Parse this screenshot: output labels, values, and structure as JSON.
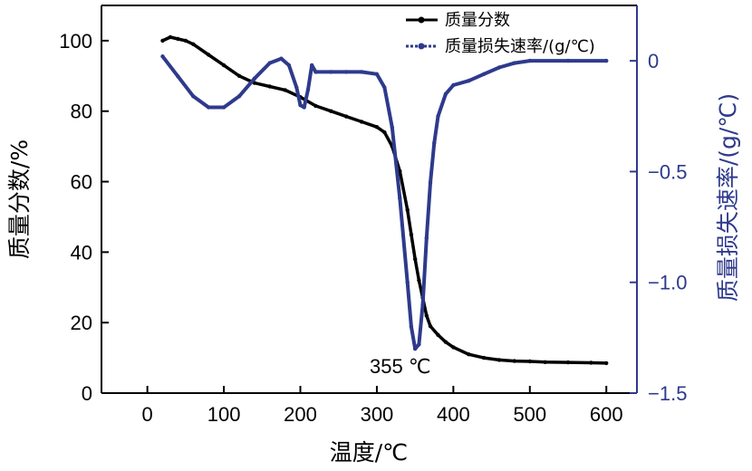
{
  "chart_data": {
    "type": "line",
    "xlabel": "温度/℃",
    "ylabel_left": "质量分数/%",
    "ylabel_right": "质量损失速率/(g/℃)",
    "xlim": [
      -60,
      640
    ],
    "ylim_left": [
      0,
      110
    ],
    "ylim_right": [
      -1.5,
      0.25
    ],
    "x_ticks": [
      0,
      100,
      200,
      300,
      400,
      500,
      600
    ],
    "y_left_ticks": [
      0,
      20,
      40,
      60,
      80,
      100
    ],
    "y_right_ticks": [
      -1.5,
      -1.0,
      -0.5,
      0
    ],
    "y_right_tick_labels": [
      "−1.5",
      "−1.0",
      "−0.5",
      "0"
    ],
    "annotation": {
      "text": "355 ℃",
      "x": 355,
      "y": -1.3
    },
    "colors": {
      "mass": "#000000",
      "rate": "#2e3a8c",
      "right_axis": "#2e3a8c"
    },
    "series": [
      {
        "name": "质量分数",
        "axis": "left",
        "color": "#000000",
        "x": [
          20,
          30,
          40,
          50,
          60,
          80,
          100,
          120,
          140,
          160,
          180,
          200,
          220,
          240,
          260,
          280,
          300,
          310,
          320,
          330,
          340,
          345,
          350,
          355,
          360,
          365,
          370,
          380,
          390,
          400,
          420,
          440,
          460,
          480,
          500,
          520,
          550,
          580,
          600
        ],
        "values": [
          100,
          101,
          100.5,
          100,
          99,
          96,
          93,
          90,
          88,
          87,
          86,
          84,
          81.5,
          80,
          78.5,
          77,
          75.5,
          74,
          70,
          63,
          52,
          45,
          38,
          32,
          27,
          22,
          19,
          16.5,
          14.5,
          13,
          11,
          10,
          9.4,
          9.1,
          9,
          8.8,
          8.7,
          8.6,
          8.5
        ]
      },
      {
        "name": "质量损失速率/(g/℃)",
        "axis": "right",
        "color": "#2e3a8c",
        "x": [
          20,
          40,
          60,
          80,
          100,
          120,
          140,
          160,
          175,
          185,
          195,
          200,
          205,
          210,
          215,
          220,
          240,
          260,
          280,
          300,
          310,
          320,
          330,
          340,
          345,
          350,
          355,
          360,
          365,
          370,
          375,
          380,
          390,
          400,
          420,
          440,
          460,
          480,
          500,
          550,
          600
        ],
        "values": [
          0.02,
          -0.07,
          -0.16,
          -0.21,
          -0.21,
          -0.16,
          -0.08,
          -0.01,
          0.01,
          -0.02,
          -0.12,
          -0.2,
          -0.21,
          -0.13,
          -0.02,
          -0.05,
          -0.05,
          -0.05,
          -0.05,
          -0.06,
          -0.12,
          -0.3,
          -0.62,
          -1.0,
          -1.2,
          -1.3,
          -1.28,
          -1.1,
          -0.8,
          -0.55,
          -0.37,
          -0.25,
          -0.15,
          -0.11,
          -0.09,
          -0.06,
          -0.03,
          -0.01,
          0,
          0,
          0
        ]
      }
    ]
  }
}
